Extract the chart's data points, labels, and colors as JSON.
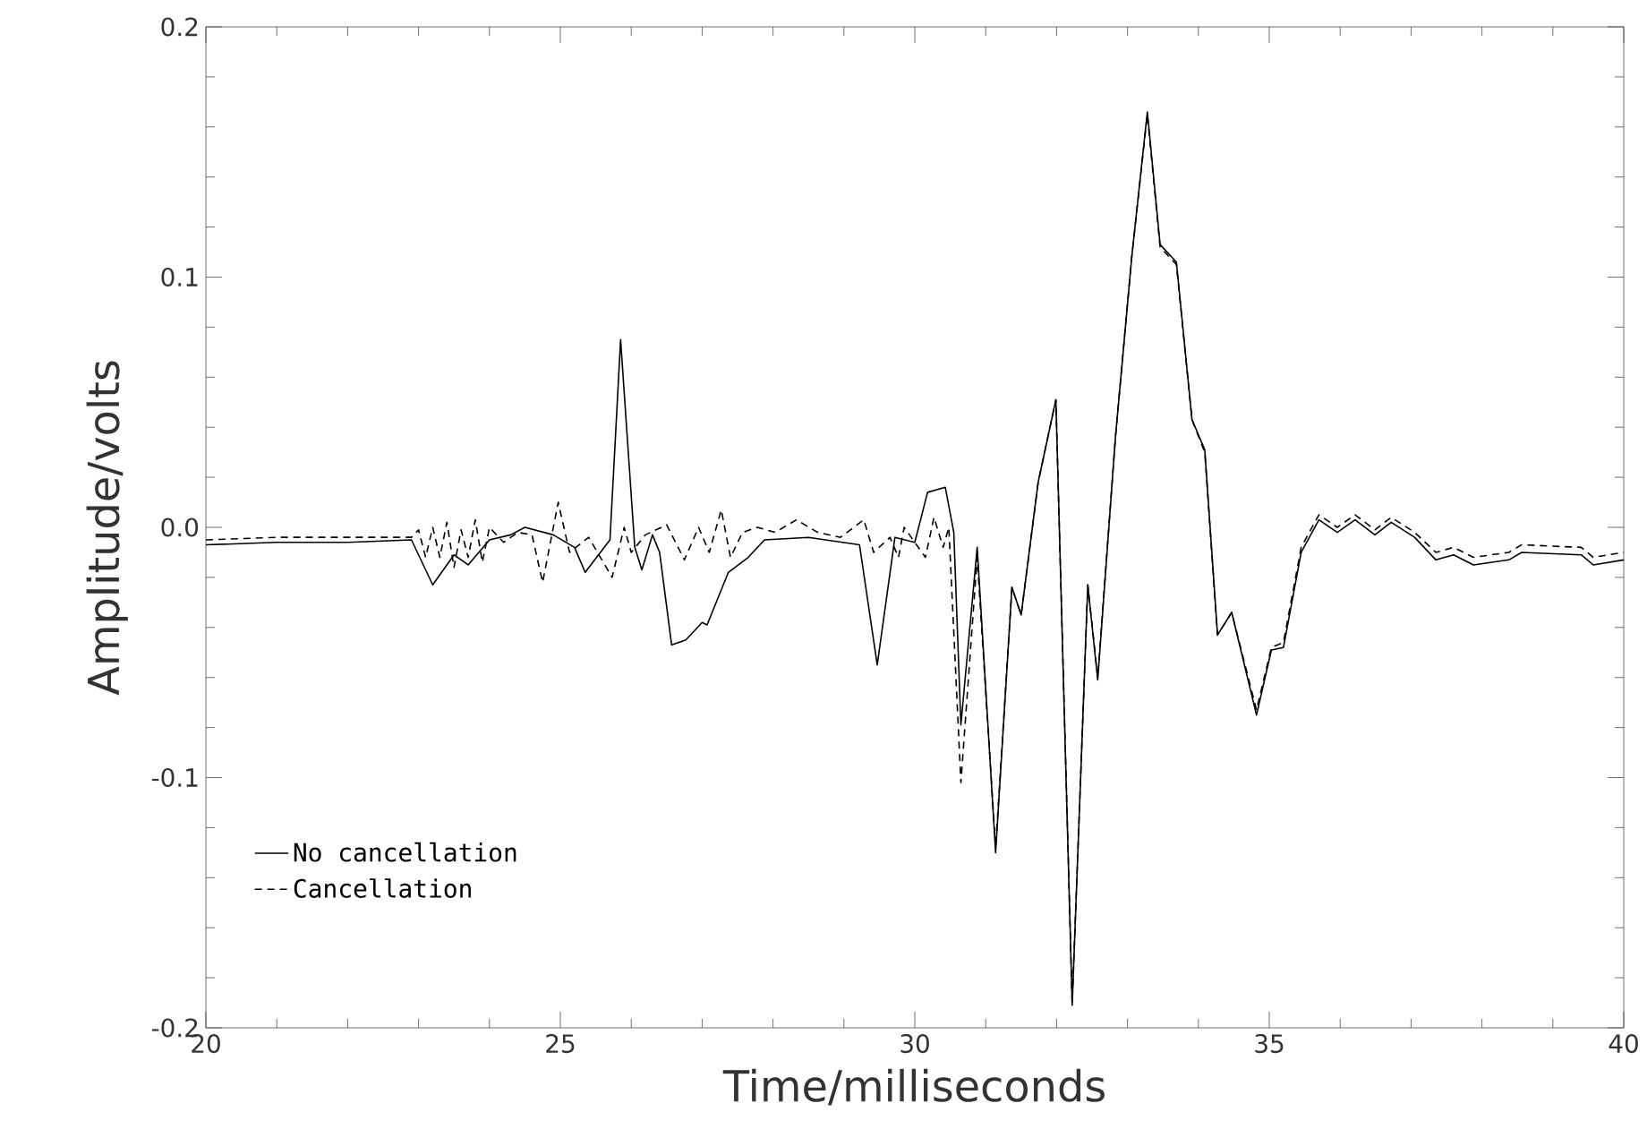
{
  "chart_data": {
    "type": "line",
    "xlabel": "Time/milliseconds",
    "ylabel": "Amplitude/volts",
    "xlim": [
      20,
      40
    ],
    "ylim": [
      -0.2,
      0.2
    ],
    "xticks": [
      20,
      25,
      30,
      35,
      40
    ],
    "yticks": [
      -0.2,
      -0.1,
      {
        "value": 0,
        "label": "0.0"
      },
      0.1,
      0.2
    ],
    "legend": "bottom left",
    "marker": "none",
    "series": [
      {
        "name": "No cancellation",
        "color": "#000000",
        "line_style": "solid",
        "x": [
          20,
          21,
          22,
          22.9,
          23.2,
          23.5,
          23.7,
          24.0,
          24.3,
          24.5,
          24.9,
          25.2,
          25.35,
          25.7,
          25.85,
          26.05,
          26.15,
          26.3,
          26.4,
          26.57,
          26.77,
          27.0,
          27.07,
          27.37,
          27.65,
          27.88,
          28.5,
          29.22,
          29.47,
          29.72,
          30.0,
          30.18,
          30.43,
          30.55,
          30.65,
          30.88,
          31.14,
          31.37,
          31.5,
          31.74,
          31.99,
          32.22,
          32.44,
          32.58,
          32.83,
          33.06,
          33.28,
          33.46,
          33.69,
          33.91,
          34.09,
          34.27,
          34.47,
          34.82,
          35.03,
          35.2,
          35.45,
          35.7,
          35.96,
          36.21,
          36.49,
          36.72,
          37.05,
          37.35,
          37.6,
          37.88,
          38.38,
          38.56,
          39.4,
          39.57,
          40
        ],
        "values": [
          -0.007,
          -0.006,
          -0.006,
          -0.005,
          -0.023,
          -0.011,
          -0.015,
          -0.005,
          -0.003,
          0.0,
          -0.003,
          -0.008,
          -0.018,
          -0.005,
          0.075,
          -0.008,
          -0.017,
          -0.003,
          -0.01,
          -0.047,
          -0.045,
          -0.038,
          -0.039,
          -0.018,
          -0.012,
          -0.005,
          -0.004,
          -0.007,
          -0.055,
          -0.004,
          -0.006,
          0.014,
          0.016,
          -0.002,
          -0.079,
          -0.008,
          -0.13,
          -0.024,
          -0.035,
          0.018,
          0.051,
          -0.191,
          -0.023,
          -0.061,
          0.036,
          0.108,
          0.166,
          0.113,
          0.106,
          0.043,
          0.031,
          -0.043,
          -0.034,
          -0.075,
          -0.049,
          -0.048,
          -0.01,
          0.003,
          -0.002,
          0.003,
          -0.003,
          0.002,
          -0.004,
          -0.013,
          -0.011,
          -0.015,
          -0.013,
          -0.01,
          -0.011,
          -0.015,
          -0.013
        ]
      },
      {
        "name": "Cancellation",
        "color": "#000000",
        "line_style": "dashed",
        "x": [
          20,
          21,
          22,
          22.9,
          23.0,
          23.1,
          23.2,
          23.3,
          23.4,
          23.5,
          23.6,
          23.7,
          23.8,
          23.9,
          24.0,
          24.2,
          24.4,
          24.6,
          24.75,
          24.97,
          25.13,
          25.4,
          25.73,
          25.9,
          26.0,
          26.2,
          26.5,
          26.75,
          26.95,
          27.1,
          27.27,
          27.4,
          27.57,
          27.78,
          28.03,
          28.33,
          28.63,
          28.95,
          29.28,
          29.42,
          29.65,
          29.77,
          29.85,
          30.15,
          30.27,
          30.4,
          30.48,
          30.65,
          30.88,
          31.14,
          31.37,
          31.5,
          31.74,
          31.99,
          32.22,
          32.44,
          32.58,
          32.83,
          33.06,
          33.28,
          33.46,
          33.69,
          33.91,
          34.09,
          34.27,
          34.47,
          34.82,
          35.03,
          35.2,
          35.45,
          35.7,
          35.96,
          36.21,
          36.49,
          36.72,
          37.05,
          37.35,
          37.6,
          37.88,
          38.38,
          38.56,
          39.4,
          39.57,
          40
        ],
        "values": [
          -0.005,
          -0.004,
          -0.004,
          -0.004,
          -0.001,
          -0.012,
          0.0,
          -0.012,
          0.002,
          -0.016,
          -0.001,
          -0.012,
          0.003,
          -0.014,
          0.0,
          -0.006,
          -0.002,
          -0.003,
          -0.022,
          0.01,
          -0.01,
          -0.004,
          -0.02,
          0.0,
          -0.01,
          -0.003,
          0.001,
          -0.013,
          0.0,
          -0.01,
          0.007,
          -0.012,
          -0.002,
          0.0,
          -0.002,
          0.003,
          -0.002,
          -0.004,
          0.003,
          -0.01,
          -0.004,
          -0.012,
          0.0,
          -0.012,
          0.004,
          -0.008,
          0.0,
          -0.102,
          -0.012,
          -0.128,
          -0.024,
          -0.035,
          0.018,
          0.051,
          -0.19,
          -0.023,
          -0.06,
          0.036,
          0.108,
          0.165,
          0.112,
          0.105,
          0.043,
          0.03,
          -0.043,
          -0.034,
          -0.073,
          -0.048,
          -0.046,
          -0.008,
          0.005,
          0.0,
          0.005,
          -0.001,
          0.004,
          -0.002,
          -0.01,
          -0.008,
          -0.012,
          -0.01,
          -0.007,
          -0.008,
          -0.012,
          -0.01
        ]
      }
    ]
  }
}
